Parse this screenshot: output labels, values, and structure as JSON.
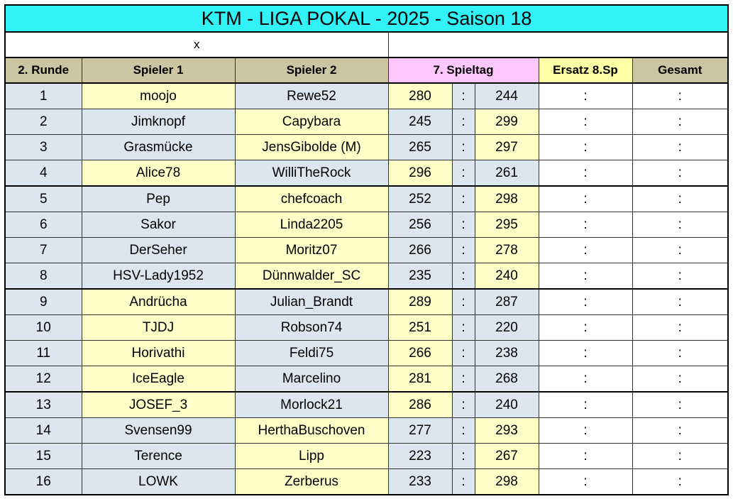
{
  "title": "KTM - LIGA  POKAL  - 2025 - Saison 18",
  "subheader": {
    "left": "x",
    "right": ""
  },
  "headers": {
    "round": "2. Runde",
    "player1": "Spieler 1",
    "player2": "Spieler 2",
    "matchday": "7. Spieltag",
    "substitute": "Ersatz 8.Sp",
    "total": "Gesamt"
  },
  "colors": {
    "title_bg": "#33f2f7",
    "header_tan": "#cbc5a1",
    "header_pink": "#ffc7ff",
    "header_yellow": "#ffffa5",
    "cell_blue": "#dce6f1",
    "cell_cream": "#ffffc8"
  },
  "rows": [
    {
      "nr": "1",
      "p1": "moojo",
      "p2": "Rewe52",
      "s1": "280",
      "sep": ":",
      "s2": "244",
      "ersatz": ":",
      "gesamt": ":"
    },
    {
      "nr": "2",
      "p1": "Jimknopf",
      "p2": "Capybara",
      "s1": "245",
      "sep": ":",
      "s2": "299",
      "ersatz": ":",
      "gesamt": ":"
    },
    {
      "nr": "3",
      "p1": "Grasmücke",
      "p2": "JensGibolde (M)",
      "s1": "265",
      "sep": ":",
      "s2": "297",
      "ersatz": ":",
      "gesamt": ":"
    },
    {
      "nr": "4",
      "p1": "Alice78",
      "p2": "WilliTheRock",
      "s1": "296",
      "sep": ":",
      "s2": "261",
      "ersatz": ":",
      "gesamt": ":"
    },
    {
      "nr": "5",
      "p1": "Pep",
      "p2": "chefcoach",
      "s1": "252",
      "sep": ":",
      "s2": "298",
      "ersatz": ":",
      "gesamt": ":"
    },
    {
      "nr": "6",
      "p1": "Sakor",
      "p2": "Linda2205",
      "s1": "256",
      "sep": ":",
      "s2": "295",
      "ersatz": ":",
      "gesamt": ":"
    },
    {
      "nr": "7",
      "p1": "DerSeher",
      "p2": "Moritz07",
      "s1": "266",
      "sep": ":",
      "s2": "278",
      "ersatz": ":",
      "gesamt": ":"
    },
    {
      "nr": "8",
      "p1": "HSV-Lady1952",
      "p2": "Dünnwalder_SC",
      "s1": "235",
      "sep": ":",
      "s2": "240",
      "ersatz": ":",
      "gesamt": ":"
    },
    {
      "nr": "9",
      "p1": "Andrücha",
      "p2": "Julian_Brandt",
      "s1": "289",
      "sep": ":",
      "s2": "287",
      "ersatz": ":",
      "gesamt": ":"
    },
    {
      "nr": "10",
      "p1": "TJDJ",
      "p2": "Robson74",
      "s1": "251",
      "sep": ":",
      "s2": "220",
      "ersatz": ":",
      "gesamt": ":"
    },
    {
      "nr": "11",
      "p1": "Horivathi",
      "p2": "Feldi75",
      "s1": "266",
      "sep": ":",
      "s2": "238",
      "ersatz": ":",
      "gesamt": ":"
    },
    {
      "nr": "12",
      "p1": "IceEagle",
      "p2": "Marcelino",
      "s1": "281",
      "sep": ":",
      "s2": "268",
      "ersatz": ":",
      "gesamt": ":"
    },
    {
      "nr": "13",
      "p1": "JOSEF_3",
      "p2": "Morlock21",
      "s1": "286",
      "sep": ":",
      "s2": "240",
      "ersatz": ":",
      "gesamt": ":"
    },
    {
      "nr": "14",
      "p1": "Svensen99",
      "p2": "HerthaBuschoven",
      "s1": "277",
      "sep": ":",
      "s2": "293",
      "ersatz": ":",
      "gesamt": ":"
    },
    {
      "nr": "15",
      "p1": "Terence",
      "p2": "Lipp",
      "s1": "223",
      "sep": ":",
      "s2": "267",
      "ersatz": ":",
      "gesamt": ":"
    },
    {
      "nr": "16",
      "p1": "LOWK",
      "p2": "Zerberus",
      "s1": "233",
      "sep": ":",
      "s2": "298",
      "ersatz": ":",
      "gesamt": ":"
    }
  ],
  "winner_side": [
    "p1",
    "p2",
    "p2",
    "p1",
    "p2",
    "p2",
    "p2",
    "p2",
    "p1",
    "p1",
    "p1",
    "p1",
    "p1",
    "p2",
    "p2",
    "p2"
  ]
}
